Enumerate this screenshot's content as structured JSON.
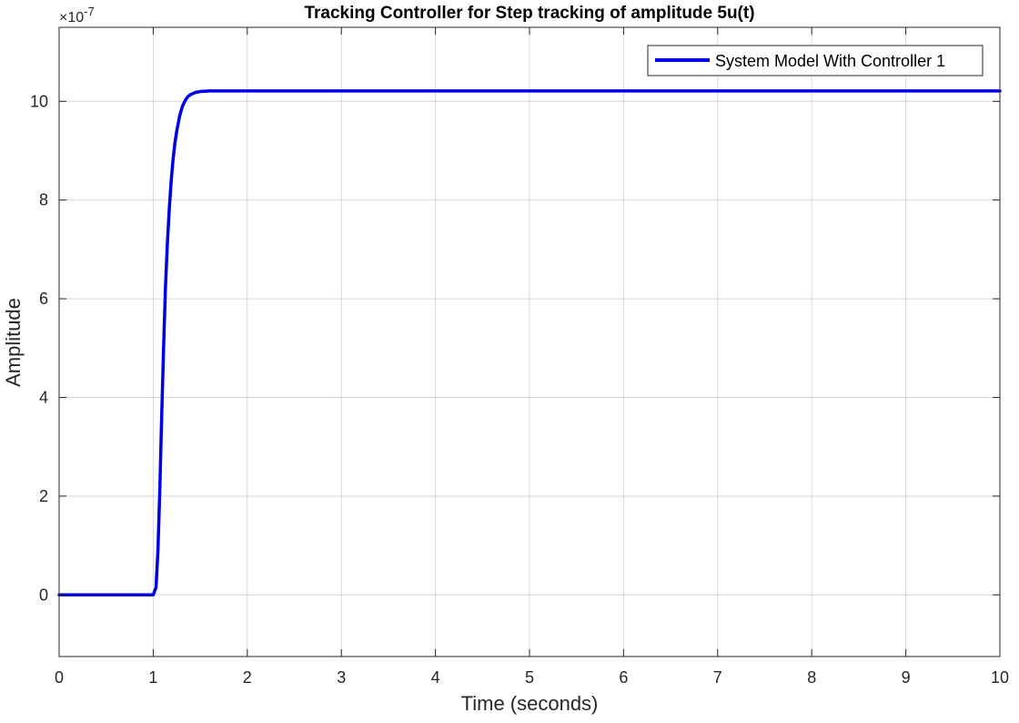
{
  "chart_data": {
    "type": "line",
    "title": "Tracking Controller for Step tracking of amplitude 5u(t)",
    "xlabel": "Time (seconds)",
    "ylabel": "Amplitude",
    "y_exponent_label": "×10",
    "y_exponent_power": "-7",
    "xlim": [
      0,
      10
    ],
    "ylim": [
      -1.25,
      11.5
    ],
    "x_ticks": [
      0,
      1,
      2,
      3,
      4,
      5,
      6,
      7,
      8,
      9,
      10
    ],
    "x_tick_labels": [
      "0",
      "1",
      "2",
      "3",
      "4",
      "5",
      "6",
      "7",
      "8",
      "9",
      "10"
    ],
    "y_ticks": [
      0,
      2,
      4,
      6,
      8,
      10
    ],
    "y_tick_labels": [
      "0",
      "2",
      "4",
      "6",
      "8",
      "10"
    ],
    "grid": true,
    "legend_position": "top-right",
    "series": [
      {
        "name": "System Model With Controller 1",
        "color": "#0000e6",
        "x": [
          0,
          1.0,
          1.03,
          1.05,
          1.07,
          1.09,
          1.11,
          1.13,
          1.15,
          1.17,
          1.19,
          1.21,
          1.23,
          1.25,
          1.28,
          1.31,
          1.34,
          1.37,
          1.4,
          1.45,
          1.5,
          1.6,
          1.7,
          1.8,
          2.0,
          3.0,
          4.0,
          5.0,
          6.0,
          7.0,
          8.0,
          9.0,
          10.0
        ],
        "y": [
          0,
          0,
          0.15,
          0.9,
          2.1,
          3.6,
          5.0,
          6.2,
          7.1,
          7.8,
          8.35,
          8.8,
          9.15,
          9.4,
          9.7,
          9.9,
          10.02,
          10.1,
          10.14,
          10.18,
          10.2,
          10.21,
          10.21,
          10.21,
          10.21,
          10.21,
          10.21,
          10.21,
          10.21,
          10.21,
          10.21,
          10.21,
          10.21
        ]
      }
    ]
  }
}
